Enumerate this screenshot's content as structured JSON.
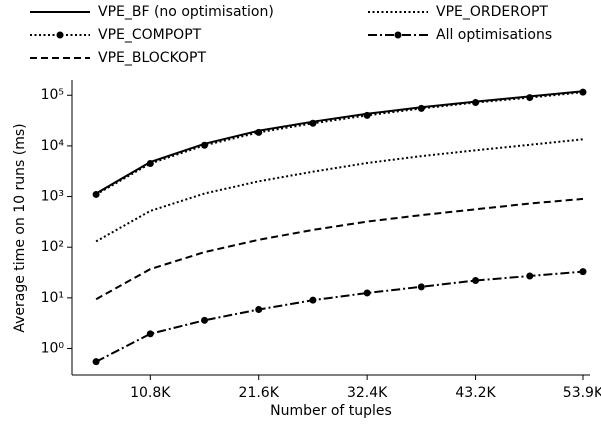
{
  "chart_data": {
    "type": "line",
    "x_label": "Number of tuples",
    "y_label": "Average time on 10 runs (ms)",
    "log_y": true,
    "legend": "top",
    "x": [
      5400,
      10800,
      16200,
      21600,
      27000,
      32400,
      37800,
      43200,
      48600,
      53900
    ],
    "xlim": [
      3000,
      54600
    ],
    "xticks": [
      {
        "value": 10800,
        "label": "10.8K"
      },
      {
        "value": 21600,
        "label": "21.6K"
      },
      {
        "value": 32400,
        "label": "32.4K"
      },
      {
        "value": 43200,
        "label": "43.2K"
      },
      {
        "value": 53900,
        "label": "53.9K"
      }
    ],
    "ylim": [
      0.3,
      200000
    ],
    "yticks": [
      {
        "value": 1,
        "label": "10⁰"
      },
      {
        "value": 10,
        "label": "10¹"
      },
      {
        "value": 100,
        "label": "10²"
      },
      {
        "value": 1000,
        "label": "10³"
      },
      {
        "value": 10000,
        "label": "10⁴"
      },
      {
        "value": 100000,
        "label": "10⁵"
      }
    ],
    "series": [
      {
        "name": "VPE_BF (no optimisation)",
        "color": "#000000",
        "style": "solid",
        "marker": false,
        "values": [
          1150,
          4800,
          11000,
          20000,
          30000,
          43000,
          58000,
          75000,
          95000,
          120000
        ]
      },
      {
        "name": "VPE_COMPOPT",
        "color": "#000000",
        "style": "dotted",
        "marker": true,
        "values": [
          1100,
          4500,
          10300,
          18500,
          28000,
          40000,
          55000,
          72000,
          90000,
          115000
        ]
      },
      {
        "name": "VPE_BLOCKOPT",
        "color": "#000000",
        "style": "dashed",
        "marker": false,
        "values": [
          9.4,
          37,
          80,
          140,
          220,
          320,
          430,
          560,
          730,
          900
        ]
      },
      {
        "name": "VPE_ORDEROPT",
        "color": "#000000",
        "style": "dotted",
        "marker": false,
        "values": [
          130,
          520,
          1150,
          2000,
          3100,
          4600,
          6300,
          8200,
          10500,
          13500
        ]
      },
      {
        "name": "All optimisations",
        "color": "#000000",
        "style": "dashdot",
        "marker": true,
        "values": [
          0.55,
          1.95,
          3.6,
          5.9,
          9,
          12.5,
          16.5,
          22,
          27,
          33
        ]
      }
    ]
  }
}
